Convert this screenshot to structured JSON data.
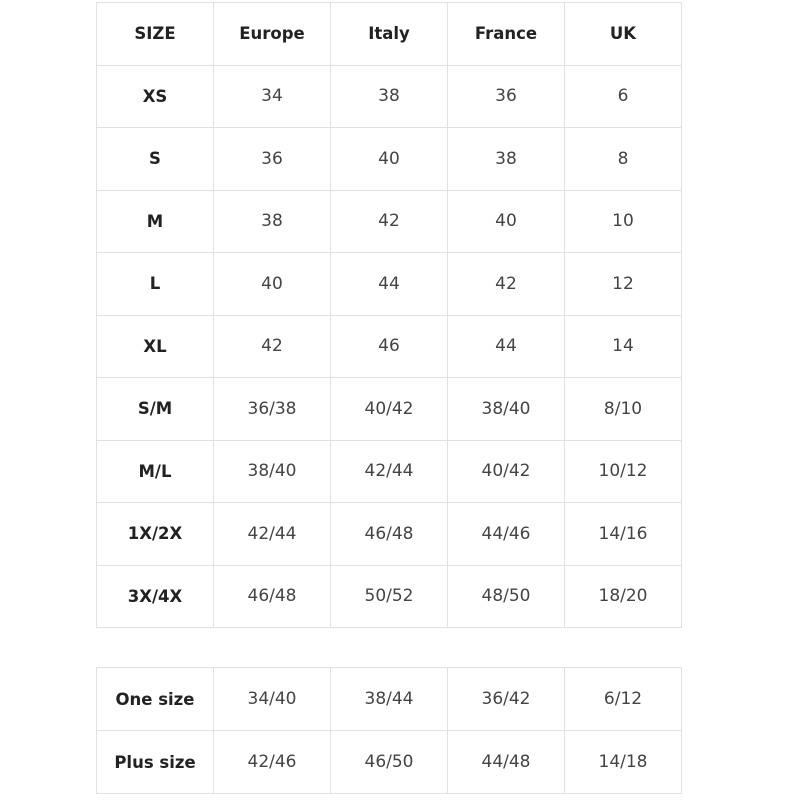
{
  "size_table": {
    "headers": [
      "SIZE",
      "Europe",
      "Italy",
      "France",
      "UK"
    ],
    "rows": [
      [
        "XS",
        "34",
        "38",
        "36",
        "6"
      ],
      [
        "S",
        "36",
        "40",
        "38",
        "8"
      ],
      [
        "M",
        "38",
        "42",
        "40",
        "10"
      ],
      [
        "L",
        "40",
        "44",
        "42",
        "12"
      ],
      [
        "XL",
        "42",
        "46",
        "44",
        "14"
      ],
      [
        "S/M",
        "36/38",
        "40/42",
        "38/40",
        "8/10"
      ],
      [
        "M/L",
        "38/40",
        "42/44",
        "40/42",
        "10/12"
      ],
      [
        "1X/2X",
        "42/44",
        "46/48",
        "44/46",
        "14/16"
      ],
      [
        "3X/4X",
        "46/48",
        "50/52",
        "48/50",
        "18/20"
      ]
    ]
  },
  "special_table": {
    "rows": [
      [
        "One size",
        "34/40",
        "38/44",
        "36/42",
        "6/12"
      ],
      [
        "Plus size",
        "42/46",
        "46/50",
        "44/48",
        "14/18"
      ]
    ]
  }
}
